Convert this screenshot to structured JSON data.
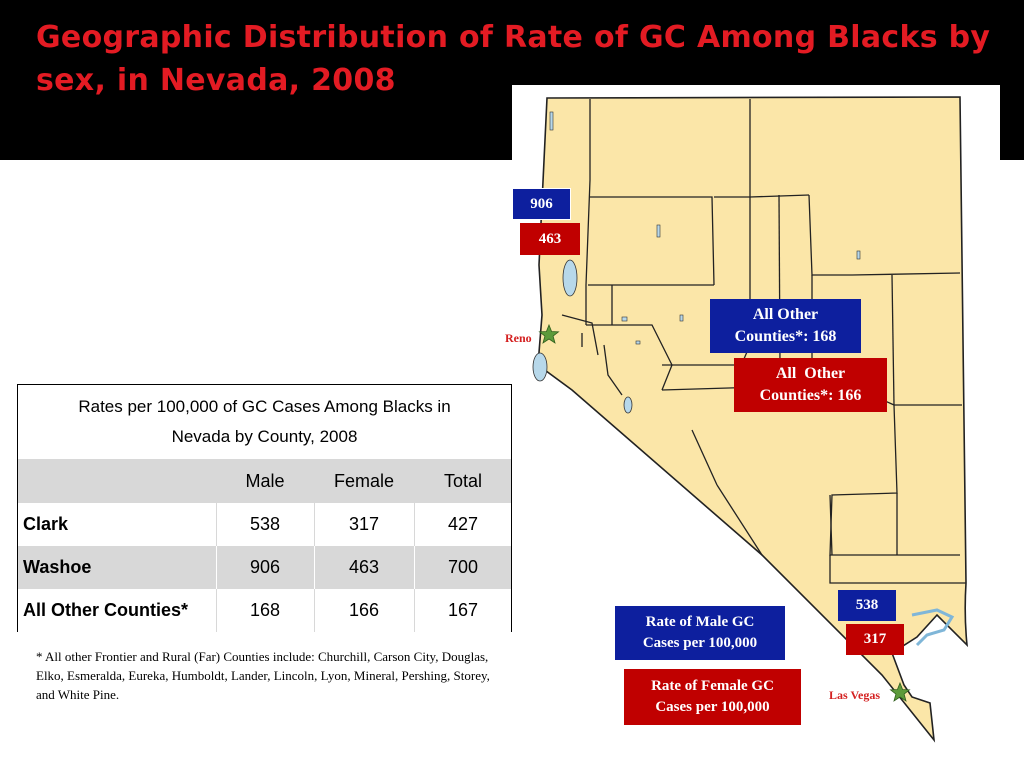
{
  "title": "Geographic Distribution of Rate of GC Among Blacks by sex, in Nevada, 2008",
  "map": {
    "washoe_male": "906",
    "washoe_female": "463",
    "other_male_line1": "All Other",
    "other_male_line2": "Counties*: 168",
    "other_female_line1": "All  Other",
    "other_female_line2": "Counties*: 166",
    "clark_male": "538",
    "clark_female": "317",
    "reno_label": "Reno",
    "las_vegas_label": "Las Vegas",
    "legend_male_line1": "Rate of Male GC",
    "legend_male_line2": "Cases per 100,000",
    "legend_female_line1": "Rate of Female GC",
    "legend_female_line2": "Cases per 100,000"
  },
  "colors": {
    "title_red": "#e31b23",
    "male_blue": "#0d1f9e",
    "female_red": "#c00000",
    "map_fill": "#fbe6a8",
    "header_gray": "#d8d8d8"
  },
  "table": {
    "title_line1": "Rates per 100,000 of GC Cases Among Blacks in",
    "title_line2": "Nevada by County, 2008",
    "headers": [
      "",
      "Male",
      "Female",
      "Total"
    ],
    "rows": [
      {
        "county": "Clark",
        "male": "538",
        "female": "317",
        "total": "427"
      },
      {
        "county": "Washoe",
        "male": "906",
        "female": "463",
        "total": "700"
      },
      {
        "county": "All Other Counties*",
        "male": "168",
        "female": "166",
        "total": "167"
      }
    ]
  },
  "footnote": "* All other Frontier and Rural (Far) Counties include: Churchill, Carson City, Douglas, Elko, Esmeralda, Eureka, Humboldt, Lander, Lincoln, Lyon, Mineral, Pershing, Storey, and White Pine."
}
